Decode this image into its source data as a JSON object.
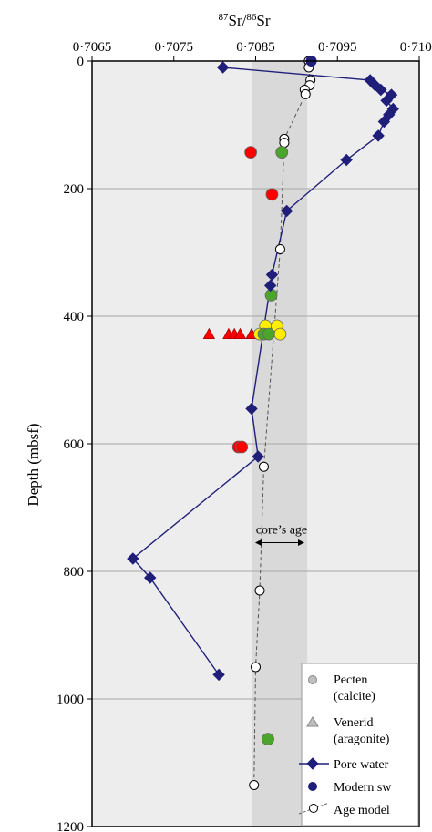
{
  "chart_data": {
    "type": "scatter",
    "title": "",
    "xlabel": {
      "sup1": "87",
      "mid": "Sr/",
      "sup2": "86",
      "end": "Sr"
    },
    "ylabel": "Depth (mbsf)",
    "xlim": [
      0.7065,
      0.7105
    ],
    "ylim": [
      0,
      1200
    ],
    "y_inverted": true,
    "x_axis_position": "top",
    "grid": "horizontal",
    "x_ticks": [
      "0·7065",
      "0·7075",
      "0·7085",
      "0·7095",
      "0·7105"
    ],
    "x_tick_values": [
      0.7065,
      0.7075,
      0.7085,
      0.7095,
      0.7105
    ],
    "y_ticks": [
      "0",
      "200",
      "400",
      "600",
      "800",
      "1000",
      "1200"
    ],
    "y_tick_values": [
      0,
      200,
      400,
      600,
      800,
      1000,
      1200
    ],
    "colors": {
      "background": "#ededed",
      "band": "#d9d9d9",
      "pore_water": "#1f1f7a",
      "pecten_red": "#ff0000",
      "pecten_green": "#4aa52a",
      "pecten_yellow": "#ffee00",
      "venerid_red": "#ff0000",
      "age_model": "#555555",
      "legend_pecten": "#bfbfbf",
      "legend_venerid": "#bfbfbf"
    },
    "band": {
      "x0": 0.70846,
      "x1": 0.70913,
      "label": "core’s age",
      "arrow_y": 755
    },
    "series": [
      {
        "kind": "age_model",
        "points": [
          {
            "x": 0.70915,
            "y": 0
          },
          {
            "x": 0.70915,
            "y": 10
          },
          {
            "x": 0.70917,
            "y": 30
          },
          {
            "x": 0.70916,
            "y": 38
          },
          {
            "x": 0.7091,
            "y": 45
          },
          {
            "x": 0.70911,
            "y": 52
          },
          {
            "x": 0.70885,
            "y": 122
          },
          {
            "x": 0.70885,
            "y": 128
          },
          {
            "x": 0.7088,
            "y": 295
          },
          {
            "x": 0.7086,
            "y": 636
          },
          {
            "x": 0.70855,
            "y": 830
          },
          {
            "x": 0.7085,
            "y": 950
          },
          {
            "x": 0.70848,
            "y": 1135
          }
        ]
      },
      {
        "kind": "pore_water",
        "points": [
          {
            "x": 0.7081,
            "y": 10
          },
          {
            "x": 0.7099,
            "y": 30
          },
          {
            "x": 0.70996,
            "y": 38
          },
          {
            "x": 0.71003,
            "y": 45
          },
          {
            "x": 0.71016,
            "y": 53
          },
          {
            "x": 0.7101,
            "y": 62
          },
          {
            "x": 0.71018,
            "y": 75
          },
          {
            "x": 0.71013,
            "y": 84
          },
          {
            "x": 0.71007,
            "y": 95
          },
          {
            "x": 0.71,
            "y": 117
          },
          {
            "x": 0.70961,
            "y": 155
          },
          {
            "x": 0.70888,
            "y": 235
          },
          {
            "x": 0.7087,
            "y": 335
          },
          {
            "x": 0.70868,
            "y": 352
          },
          {
            "x": 0.70845,
            "y": 545
          },
          {
            "x": 0.70853,
            "y": 620
          },
          {
            "x": 0.707,
            "y": 780
          },
          {
            "x": 0.70721,
            "y": 810
          },
          {
            "x": 0.70805,
            "y": 962
          }
        ]
      },
      {
        "kind": "modern_sw",
        "points": [
          {
            "x": 0.70918,
            "y": 0
          }
        ]
      },
      {
        "kind": "pecten",
        "points": [
          {
            "x": 0.70844,
            "y": 143,
            "color": "red"
          },
          {
            "x": 0.70882,
            "y": 143,
            "color": "green"
          },
          {
            "x": 0.7087,
            "y": 209,
            "color": "red"
          },
          {
            "x": 0.70869,
            "y": 367,
            "color": "green"
          },
          {
            "x": 0.70862,
            "y": 415,
            "color": "yellow"
          },
          {
            "x": 0.70876,
            "y": 415,
            "color": "yellow"
          },
          {
            "x": 0.70855,
            "y": 428,
            "color": "yellow"
          },
          {
            "x": 0.7088,
            "y": 428,
            "color": "yellow"
          },
          {
            "x": 0.7086,
            "y": 428,
            "color": "green"
          },
          {
            "x": 0.70866,
            "y": 428,
            "color": "green"
          },
          {
            "x": 0.70829,
            "y": 605,
            "color": "red"
          },
          {
            "x": 0.70833,
            "y": 605,
            "color": "red"
          },
          {
            "x": 0.70865,
            "y": 1063,
            "color": "green"
          }
        ]
      },
      {
        "kind": "venerid",
        "points": [
          {
            "x": 0.70793,
            "y": 428,
            "color": "red"
          },
          {
            "x": 0.70817,
            "y": 428,
            "color": "red"
          },
          {
            "x": 0.70824,
            "y": 428,
            "color": "red"
          },
          {
            "x": 0.70831,
            "y": 428,
            "color": "red"
          },
          {
            "x": 0.70845,
            "y": 428,
            "color": "red"
          }
        ]
      }
    ],
    "legend": {
      "position": "bottom-right",
      "entries": [
        {
          "key": "pecten",
          "line1": "Pecten",
          "line2": "(calcite)"
        },
        {
          "key": "venerid",
          "line1": "Venerid",
          "line2": "(aragonite)"
        },
        {
          "key": "pore_water",
          "line1": "Pore water"
        },
        {
          "key": "modern_sw",
          "line1": "Modern sw"
        },
        {
          "key": "age_model",
          "line1": "Age model"
        }
      ]
    }
  }
}
